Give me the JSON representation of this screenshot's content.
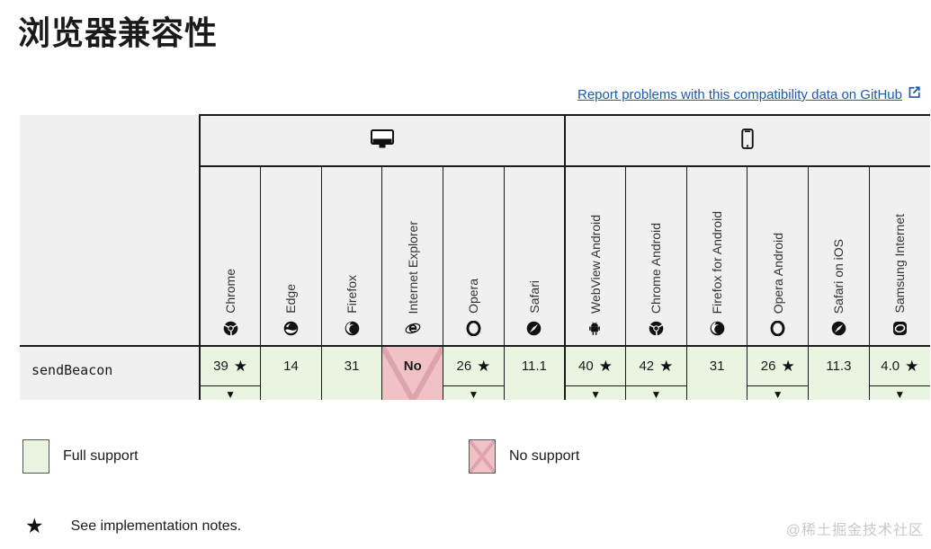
{
  "page": {
    "title": "浏览器兼容性"
  },
  "report_link": {
    "label": "Report problems with this compatibility data on GitHub"
  },
  "table": {
    "groups": [
      {
        "id": "desktop",
        "icon": "desktop-icon",
        "span": 6
      },
      {
        "id": "mobile",
        "icon": "mobile-icon",
        "span": 6
      }
    ],
    "browsers": [
      {
        "id": "chrome",
        "name": "Chrome",
        "icon": "chrome-icon"
      },
      {
        "id": "edge",
        "name": "Edge",
        "icon": "edge-icon"
      },
      {
        "id": "firefox",
        "name": "Firefox",
        "icon": "firefox-icon"
      },
      {
        "id": "ie",
        "name": "Internet Explorer",
        "icon": "internet-explorer-icon"
      },
      {
        "id": "opera",
        "name": "Opera",
        "icon": "opera-icon"
      },
      {
        "id": "safari",
        "name": "Safari",
        "icon": "safari-icon"
      },
      {
        "id": "webview-android",
        "name": "WebView Android",
        "icon": "android-icon"
      },
      {
        "id": "chrome-android",
        "name": "Chrome Android",
        "icon": "chrome-icon"
      },
      {
        "id": "firefox-android",
        "name": "Firefox for Android",
        "icon": "firefox-icon"
      },
      {
        "id": "opera-android",
        "name": "Opera Android",
        "icon": "opera-icon"
      },
      {
        "id": "safari-ios",
        "name": "Safari on iOS",
        "icon": "safari-icon"
      },
      {
        "id": "samsung-internet",
        "name": "Samsung Internet",
        "icon": "samsung-internet-icon"
      }
    ],
    "rows": [
      {
        "feature": "sendBeacon",
        "cells": [
          {
            "text": "39",
            "support": "full",
            "star": true,
            "expandable": true
          },
          {
            "text": "14",
            "support": "full",
            "star": false,
            "expandable": false
          },
          {
            "text": "31",
            "support": "full",
            "star": false,
            "expandable": false
          },
          {
            "text": "No",
            "support": "no",
            "star": false,
            "expandable": false
          },
          {
            "text": "26",
            "support": "full",
            "star": true,
            "expandable": true
          },
          {
            "text": "11.1",
            "support": "full",
            "star": false,
            "expandable": false
          },
          {
            "text": "40",
            "support": "full",
            "star": true,
            "expandable": true
          },
          {
            "text": "42",
            "support": "full",
            "star": true,
            "expandable": true
          },
          {
            "text": "31",
            "support": "full",
            "star": false,
            "expandable": false
          },
          {
            "text": "26",
            "support": "full",
            "star": true,
            "expandable": true
          },
          {
            "text": "11.3",
            "support": "full",
            "star": false,
            "expandable": false
          },
          {
            "text": "4.0",
            "support": "full",
            "star": true,
            "expandable": true
          }
        ]
      }
    ]
  },
  "legend": {
    "full_label": "Full support",
    "no_label": "No support",
    "note_label": "See implementation notes."
  },
  "watermark": "@稀土掘金技术社区",
  "colors": {
    "full_support_bg": "#e9f4e1",
    "no_support_bg": "#f0c2c6",
    "no_support_cross": "#dda4ab",
    "header_bg": "#f0f0f0",
    "link_blue": "#1a5bab",
    "border_dark": "#1a1a1a"
  }
}
